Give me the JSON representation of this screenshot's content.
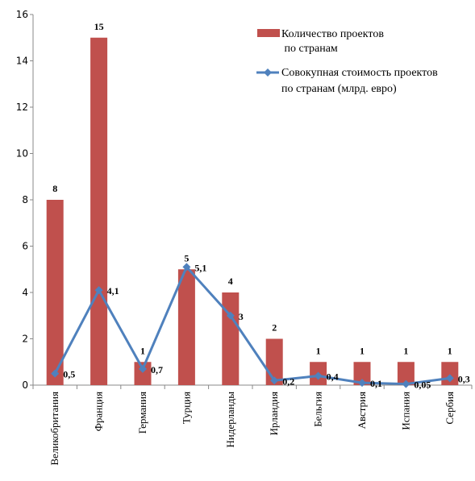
{
  "chart_data": {
    "type": "bar+line",
    "categories": [
      "Великобритания",
      "Франция",
      "Германия",
      "Турция",
      "Нидерланды",
      "Ирландия",
      "Бельгия",
      "Австрия",
      "Испания",
      "Сербия"
    ],
    "series": [
      {
        "name_lines": [
          "Количество проектов",
          " по странам"
        ],
        "type": "bar",
        "color": "#C0504D",
        "values": [
          8,
          15,
          1,
          5,
          4,
          2,
          1,
          1,
          1,
          1
        ],
        "labels": [
          "8",
          "15",
          "1",
          "5",
          "4",
          "2",
          "1",
          "1",
          "1",
          "1"
        ]
      },
      {
        "name_lines": [
          "Совокупная стоимость проектов",
          "по странам (млрд. евро)"
        ],
        "type": "line",
        "color": "#4F81BD",
        "values": [
          0.5,
          4.1,
          0.7,
          5.1,
          3,
          0.2,
          0.4,
          0.1,
          0.05,
          0.3
        ],
        "labels": [
          "0,5",
          "4,1",
          "0,7",
          "5,1",
          "3",
          "0,2",
          "0,4",
          "0,1",
          "0,05",
          "0,3"
        ]
      }
    ],
    "ylim": [
      0,
      16
    ],
    "yticks": [
      0,
      2,
      4,
      6,
      8,
      10,
      12,
      14,
      16
    ],
    "grid": false,
    "legend_position": "top-right"
  }
}
